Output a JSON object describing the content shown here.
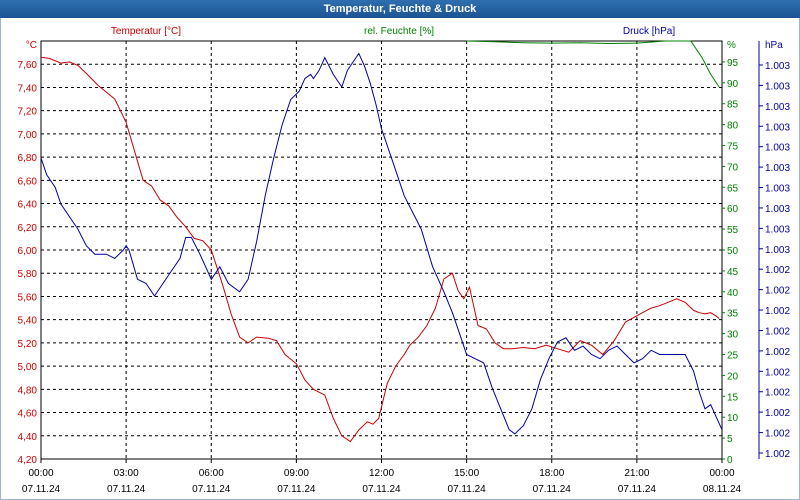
{
  "window": {
    "title": "Temperatur, Feuchte & Druck"
  },
  "colors": {
    "temperature": "#cc0000",
    "humidity": "#008000",
    "pressure": "#0000aa",
    "title_bar": "#1f5a9c",
    "grid": "#000000"
  },
  "chart_data": {
    "type": "line",
    "title": "Temperatur, Feuchte & Druck",
    "grid": true,
    "legend": [
      "Temperatur [°C]",
      "rel. Feuchte [%]",
      "Druck [hPa]"
    ],
    "x_ticks": [
      {
        "time": "00:00",
        "date": "07.11.24"
      },
      {
        "time": "03:00",
        "date": "07.11.24"
      },
      {
        "time": "06:00",
        "date": "07.11.24"
      },
      {
        "time": "09:00",
        "date": "07.11.24"
      },
      {
        "time": "12:00",
        "date": "07.11.24"
      },
      {
        "time": "15:00",
        "date": "07.11.24"
      },
      {
        "time": "18:00",
        "date": "07.11.24"
      },
      {
        "time": "21:00",
        "date": "07.11.24"
      },
      {
        "time": "00:00",
        "date": "08.11.24"
      }
    ],
    "x_range_hours": [
      0,
      24
    ],
    "axes": {
      "temperature": {
        "unit": "°C",
        "label": "Temperatur [°C]",
        "ylim": [
          4.2,
          7.8
        ],
        "ticks": [
          "7,60",
          "7,40",
          "7,20",
          "7,00",
          "6,80",
          "6,60",
          "6,40",
          "6,20",
          "6,00",
          "5,80",
          "5,60",
          "5,40",
          "5,20",
          "5,00",
          "4,80",
          "4,60",
          "4,40",
          "4,20"
        ]
      },
      "humidity": {
        "unit": "%",
        "label": "rel. Feuchte [%]",
        "ylim": [
          0,
          100
        ],
        "ticks": [
          "95",
          "90",
          "85",
          "80",
          "75",
          "70",
          "65",
          "60",
          "55",
          "50",
          "45",
          "40",
          "35",
          "30",
          "25",
          "20",
          "15",
          "10",
          "5",
          "0"
        ]
      },
      "pressure": {
        "unit": "hPa",
        "label": "Druck [hPa]",
        "ticks": [
          "1.003",
          "1.003",
          "1.003",
          "1.003",
          "1.003",
          "1.003",
          "1.003",
          "1.003",
          "1.003",
          "1.003",
          "1.002",
          "1.002",
          "1.002",
          "1.002",
          "1.002",
          "1.002",
          "1.002",
          "1.002",
          "1.002",
          "1.002"
        ]
      }
    },
    "series": [
      {
        "name": "Temperatur [°C]",
        "axis": "temperature",
        "x": [
          0,
          0.3,
          0.7,
          1.0,
          1.3,
          1.6,
          2.0,
          2.3,
          2.6,
          3.0,
          3.3,
          3.6,
          3.9,
          4.2,
          4.5,
          4.8,
          5.1,
          5.4,
          5.7,
          6.0,
          6.4,
          6.7,
          7.0,
          7.3,
          7.6,
          8.0,
          8.3,
          8.6,
          9.0,
          9.3,
          9.6,
          10.0,
          10.3,
          10.6,
          10.9,
          11.2,
          11.5,
          11.7,
          11.9,
          12.2,
          12.5,
          12.8,
          13.0,
          13.3,
          13.6,
          13.9,
          14.2,
          14.5,
          14.7,
          14.9,
          15.1,
          15.4,
          15.7,
          16.0,
          16.3,
          16.6,
          17.0,
          17.4,
          17.8,
          18.2,
          18.6,
          19.0,
          19.4,
          19.8,
          20.2,
          20.6,
          20.9,
          21.2,
          21.5,
          21.8,
          22.1,
          22.4,
          22.7,
          23.0,
          23.2,
          23.4,
          23.6,
          23.8,
          23.9
        ],
        "values": [
          7.66,
          7.65,
          7.61,
          7.62,
          7.59,
          7.52,
          7.42,
          7.36,
          7.3,
          7.1,
          6.85,
          6.6,
          6.55,
          6.43,
          6.38,
          6.28,
          6.2,
          6.1,
          6.08,
          6.0,
          5.7,
          5.45,
          5.25,
          5.2,
          5.25,
          5.24,
          5.22,
          5.1,
          5.02,
          4.88,
          4.8,
          4.75,
          4.55,
          4.4,
          4.35,
          4.45,
          4.52,
          4.5,
          4.55,
          4.85,
          5.0,
          5.1,
          5.18,
          5.25,
          5.35,
          5.5,
          5.75,
          5.8,
          5.65,
          5.58,
          5.68,
          5.35,
          5.32,
          5.2,
          5.15,
          5.15,
          5.16,
          5.15,
          5.18,
          5.15,
          5.12,
          5.22,
          5.18,
          5.1,
          5.22,
          5.38,
          5.42,
          5.46,
          5.5,
          5.52,
          5.55,
          5.58,
          5.55,
          5.48,
          5.46,
          5.45,
          5.46,
          5.43,
          5.41
        ]
      },
      {
        "name": "rel. Feuchte [%]",
        "axis": "humidity",
        "x": [
          15.0,
          16.0,
          17.0,
          18.0,
          19.0,
          20.0,
          21.0,
          22.0,
          22.9,
          23.3,
          23.6,
          23.9
        ],
        "values": [
          100,
          99.8,
          99.6,
          99.5,
          99.6,
          99.4,
          99.5,
          100,
          100,
          96,
          92,
          89
        ]
      },
      {
        "name": "Druck [hPa]",
        "axis": "pressure",
        "x": [
          0,
          0.2,
          0.5,
          0.7,
          1.0,
          1.3,
          1.6,
          1.9,
          2.3,
          2.6,
          2.9,
          3.0,
          3.1,
          3.4,
          3.7,
          4.0,
          4.3,
          4.6,
          4.9,
          5.1,
          5.3,
          5.6,
          5.8,
          6.0,
          6.3,
          6.6,
          7.0,
          7.3,
          7.6,
          7.9,
          8.2,
          8.5,
          8.8,
          9.1,
          9.3,
          9.5,
          9.6,
          9.8,
          10.0,
          10.3,
          10.6,
          10.8,
          11.0,
          11.2,
          11.4,
          11.6,
          11.8,
          12.0,
          12.4,
          12.8,
          13.1,
          13.4,
          13.8,
          14.2,
          14.5,
          14.8,
          15.0,
          15.3,
          15.6,
          15.9,
          16.2,
          16.5,
          16.7,
          17.0,
          17.3,
          17.6,
          17.9,
          18.2,
          18.5,
          18.8,
          19.1,
          19.4,
          19.7,
          20.0,
          20.3,
          20.6,
          20.9,
          21.2,
          21.5,
          21.8,
          22.1,
          22.4,
          22.7,
          23.0,
          23.2,
          23.4,
          23.6,
          23.8,
          24.0
        ],
        "values": [
          72,
          68,
          65,
          61,
          58,
          55,
          51,
          49,
          49,
          48,
          50,
          51,
          50,
          43,
          42,
          39,
          42,
          45,
          48,
          53,
          53,
          49,
          46,
          43,
          46,
          42,
          40,
          43,
          52,
          63,
          72,
          80,
          86,
          88,
          91,
          92,
          91,
          93,
          96,
          92,
          89,
          93,
          95,
          97,
          94,
          90,
          85,
          79,
          71,
          63,
          59,
          55,
          46,
          40,
          35,
          29,
          25,
          24,
          23,
          17,
          12,
          7,
          6,
          8,
          12,
          19,
          24,
          28,
          29,
          26,
          27,
          25,
          24,
          26,
          27,
          25,
          23,
          24,
          26,
          25,
          25,
          25,
          25,
          21,
          16,
          12,
          13,
          10,
          7
        ]
      }
    ]
  }
}
